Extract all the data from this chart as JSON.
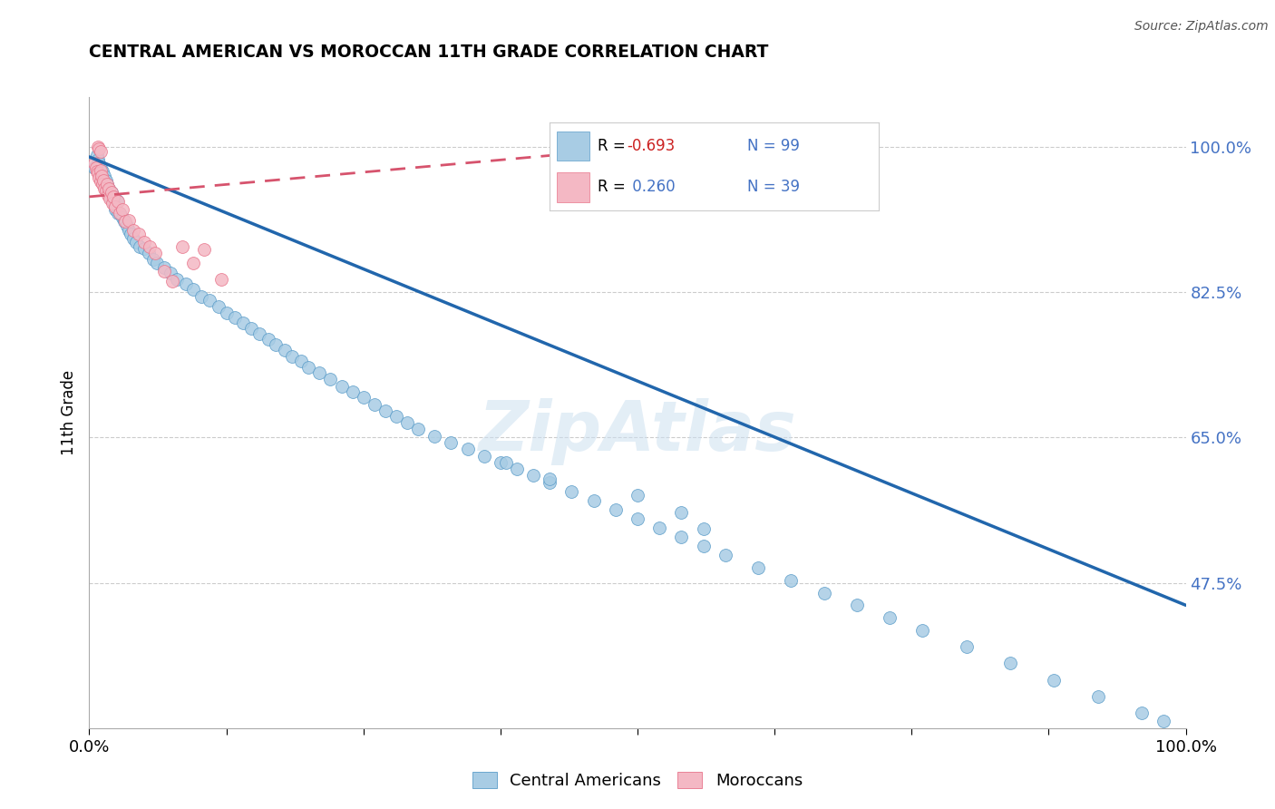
{
  "title": "CENTRAL AMERICAN VS MOROCCAN 11TH GRADE CORRELATION CHART",
  "source": "Source: ZipAtlas.com",
  "ylabel": "11th Grade",
  "y_tick_labels": [
    "100.0%",
    "82.5%",
    "65.0%",
    "47.5%"
  ],
  "y_tick_values": [
    1.0,
    0.825,
    0.65,
    0.475
  ],
  "xlim": [
    0.0,
    1.0
  ],
  "ylim": [
    0.3,
    1.06
  ],
  "legend_r1_label": "R = ",
  "legend_r1_val": "-0.693",
  "legend_n1": "N = 99",
  "legend_r2_label": "R = ",
  "legend_r2_val": " 0.260",
  "legend_n2": "N = 39",
  "legend_label1": "Central Americans",
  "legend_label2": "Moroccans",
  "watermark": "ZipAtlas",
  "blue_color": "#a8cce4",
  "blue_edge_color": "#5b9dc9",
  "blue_line_color": "#2166ac",
  "pink_color": "#f4b8c4",
  "pink_edge_color": "#e8748a",
  "pink_line_color": "#d6536d",
  "background_color": "#ffffff",
  "grid_color": "#cccccc",
  "blue_scatter_x": [
    0.005,
    0.007,
    0.008,
    0.009,
    0.01,
    0.01,
    0.011,
    0.012,
    0.012,
    0.013,
    0.014,
    0.015,
    0.015,
    0.016,
    0.017,
    0.018,
    0.019,
    0.02,
    0.021,
    0.022,
    0.023,
    0.024,
    0.025,
    0.026,
    0.028,
    0.03,
    0.032,
    0.034,
    0.036,
    0.038,
    0.04,
    0.043,
    0.046,
    0.05,
    0.054,
    0.058,
    0.062,
    0.068,
    0.074,
    0.08,
    0.088,
    0.095,
    0.102,
    0.11,
    0.118,
    0.125,
    0.133,
    0.14,
    0.148,
    0.155,
    0.163,
    0.17,
    0.178,
    0.185,
    0.193,
    0.2,
    0.21,
    0.22,
    0.23,
    0.24,
    0.25,
    0.26,
    0.27,
    0.28,
    0.29,
    0.3,
    0.315,
    0.33,
    0.345,
    0.36,
    0.375,
    0.39,
    0.405,
    0.42,
    0.44,
    0.46,
    0.48,
    0.5,
    0.52,
    0.54,
    0.56,
    0.58,
    0.61,
    0.64,
    0.67,
    0.7,
    0.73,
    0.76,
    0.8,
    0.84,
    0.88,
    0.92,
    0.96,
    0.98,
    0.38,
    0.42,
    0.5,
    0.54,
    0.56
  ],
  "blue_scatter_y": [
    0.975,
    0.99,
    0.985,
    0.98,
    0.975,
    0.97,
    0.965,
    0.96,
    0.97,
    0.955,
    0.965,
    0.96,
    0.95,
    0.955,
    0.945,
    0.95,
    0.94,
    0.945,
    0.935,
    0.94,
    0.93,
    0.925,
    0.935,
    0.92,
    0.92,
    0.915,
    0.91,
    0.905,
    0.9,
    0.895,
    0.89,
    0.885,
    0.88,
    0.878,
    0.872,
    0.865,
    0.86,
    0.855,
    0.848,
    0.84,
    0.835,
    0.828,
    0.82,
    0.815,
    0.808,
    0.8,
    0.795,
    0.788,
    0.782,
    0.775,
    0.768,
    0.762,
    0.755,
    0.748,
    0.742,
    0.735,
    0.728,
    0.72,
    0.712,
    0.705,
    0.698,
    0.69,
    0.682,
    0.675,
    0.668,
    0.66,
    0.652,
    0.644,
    0.636,
    0.628,
    0.62,
    0.612,
    0.604,
    0.596,
    0.585,
    0.574,
    0.563,
    0.552,
    0.541,
    0.53,
    0.519,
    0.508,
    0.493,
    0.478,
    0.463,
    0.448,
    0.433,
    0.418,
    0.398,
    0.378,
    0.358,
    0.338,
    0.318,
    0.308,
    0.62,
    0.6,
    0.58,
    0.56,
    0.54
  ],
  "pink_scatter_x": [
    0.005,
    0.006,
    0.007,
    0.008,
    0.009,
    0.01,
    0.01,
    0.011,
    0.012,
    0.013,
    0.014,
    0.015,
    0.016,
    0.017,
    0.018,
    0.019,
    0.02,
    0.021,
    0.022,
    0.024,
    0.026,
    0.028,
    0.03,
    0.033,
    0.036,
    0.04,
    0.045,
    0.05,
    0.055,
    0.06,
    0.068,
    0.076,
    0.085,
    0.095,
    0.105,
    0.12,
    0.008,
    0.009,
    0.01
  ],
  "pink_scatter_y": [
    0.98,
    0.975,
    0.97,
    0.968,
    0.963,
    0.972,
    0.958,
    0.965,
    0.955,
    0.96,
    0.95,
    0.948,
    0.955,
    0.942,
    0.95,
    0.938,
    0.945,
    0.932,
    0.94,
    0.928,
    0.934,
    0.92,
    0.925,
    0.91,
    0.912,
    0.9,
    0.895,
    0.885,
    0.88,
    0.872,
    0.85,
    0.838,
    0.88,
    0.86,
    0.876,
    0.84,
    1.0,
    0.998,
    0.995
  ],
  "blue_trend_x": [
    0.0,
    1.0
  ],
  "blue_trend_y": [
    0.988,
    0.448
  ],
  "pink_trend_x": [
    0.0,
    0.55
  ],
  "pink_trend_y": [
    0.94,
    1.005
  ]
}
